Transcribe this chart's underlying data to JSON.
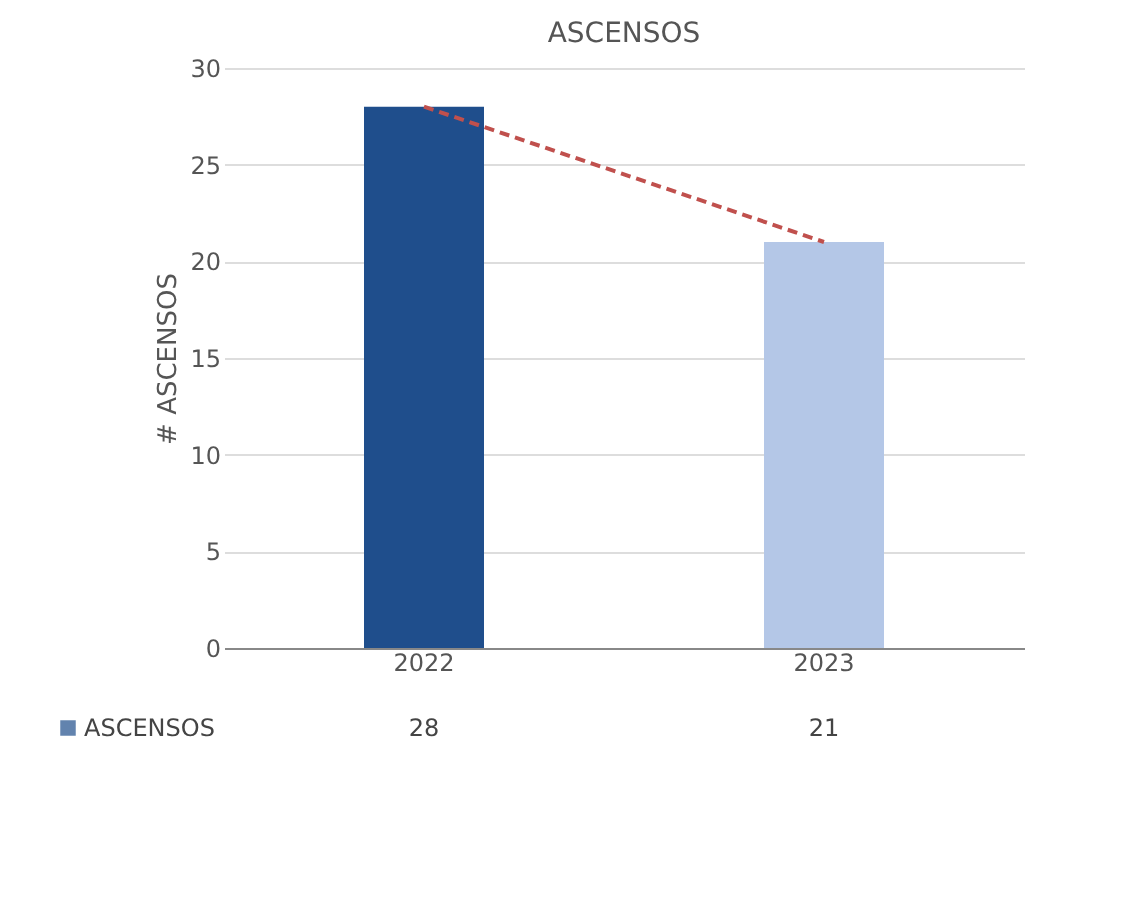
{
  "chart_data": {
    "type": "bar",
    "title": "ASCENSOS",
    "ylabel": "# ASCENSOS",
    "categories": [
      "2022",
      "2023"
    ],
    "series": [
      {
        "name": "ASCENSOS",
        "color": "#1f4e8c",
        "colors": [
          "#1f4e8c",
          "#b4c7e7"
        ],
        "values": [
          28,
          21
        ],
        "value_labels": [
          "28",
          "21"
        ]
      },
      {
        "type": "line",
        "color": "#c0504d",
        "line_style": "dashed",
        "values": [
          28,
          21
        ]
      }
    ],
    "ylim": [
      0,
      30
    ],
    "yticks": [
      0,
      5,
      10,
      15,
      20,
      25,
      30
    ],
    "grid": "y",
    "legend": "bottom"
  }
}
